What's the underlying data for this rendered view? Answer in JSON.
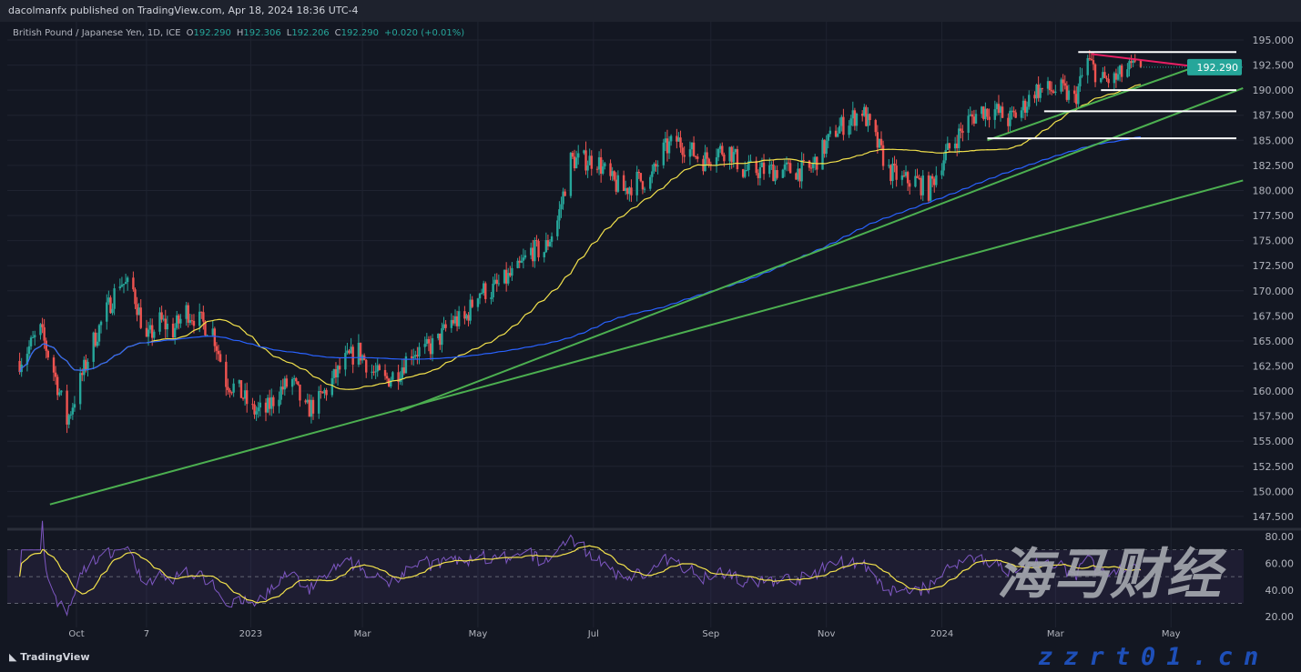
{
  "header": {
    "published": "dacolmanfx published on TradingView.com, Apr 18, 2024 18:36 UTC-4"
  },
  "legend": {
    "symbol": "British Pound / Japanese Yen, 1D, ICE",
    "o_label": "O",
    "open": "192.290",
    "h_label": "H",
    "high": "192.306",
    "l_label": "L",
    "low": "192.206",
    "c_label": "C",
    "close": "192.290",
    "change": "+0.020 (+0.01%)"
  },
  "branding": {
    "tradingview": "TradingView",
    "watermark_cn": "海马财经",
    "watermark_url": "zzrt01.cn"
  },
  "colors": {
    "background": "#131722",
    "up": "#26a69a",
    "down": "#ef5350",
    "ma_fast": "#f2e14c",
    "ma_slow": "#2962ff",
    "trendline": "#4caf50",
    "resistance": "#e91e63",
    "levels": "#ffffff",
    "rsi": "#7e57c2",
    "rsi_ma": "#f2e14c",
    "last_price": "#26a69a"
  },
  "chart_data": {
    "type": "candlestick",
    "title": "British Pound / Japanese Yen, 1D, ICE",
    "price_axis": {
      "ticks": [
        "195.000",
        "192.500",
        "190.000",
        "187.500",
        "185.000",
        "182.500",
        "180.000",
        "177.500",
        "175.000",
        "172.500",
        "170.000",
        "167.500",
        "165.000",
        "162.500",
        "160.000",
        "157.500",
        "155.000",
        "152.500",
        "150.000",
        "147.500"
      ],
      "range": [
        147.5,
        195.0
      ],
      "last_price": "192.290"
    },
    "time_axis": {
      "ticks": [
        {
          "label": "Oct",
          "date": "2022-10-01"
        },
        {
          "label": "7",
          "date": "2022-11-07"
        },
        {
          "label": "2023",
          "date": "2023-01-01"
        },
        {
          "label": "Mar",
          "date": "2023-03-01"
        },
        {
          "label": "May",
          "date": "2023-05-01"
        },
        {
          "label": "Jul",
          "date": "2023-07-01"
        },
        {
          "label": "Sep",
          "date": "2023-09-01"
        },
        {
          "label": "Nov",
          "date": "2023-11-01"
        },
        {
          "label": "2024",
          "date": "2024-01-01"
        },
        {
          "label": "Mar",
          "date": "2024-03-01"
        },
        {
          "label": "May",
          "date": "2024-05-01"
        }
      ],
      "range": [
        "2022-09-01",
        "2024-06-08"
      ]
    },
    "weekly_closes": [
      [
        "2022-09-01",
        163
      ],
      [
        "2022-09-12",
        166
      ],
      [
        "2022-09-19",
        162
      ],
      [
        "2022-09-26",
        157
      ],
      [
        "2022-10-03",
        161
      ],
      [
        "2022-10-10",
        165
      ],
      [
        "2022-10-17",
        168
      ],
      [
        "2022-10-24",
        171
      ],
      [
        "2022-10-31",
        170
      ],
      [
        "2022-11-07",
        165
      ],
      [
        "2022-11-14",
        167
      ],
      [
        "2022-11-21",
        166
      ],
      [
        "2022-11-28",
        168
      ],
      [
        "2022-12-05",
        167
      ],
      [
        "2022-12-12",
        166
      ],
      [
        "2022-12-19",
        161
      ],
      [
        "2022-12-26",
        160
      ],
      [
        "2023-01-02",
        158
      ],
      [
        "2023-01-09",
        158
      ],
      [
        "2023-01-16",
        160
      ],
      [
        "2023-01-23",
        161
      ],
      [
        "2023-01-30",
        158
      ],
      [
        "2023-02-06",
        159
      ],
      [
        "2023-02-13",
        161
      ],
      [
        "2023-02-20",
        163
      ],
      [
        "2023-02-27",
        164
      ],
      [
        "2023-03-06",
        162
      ],
      [
        "2023-03-13",
        161
      ],
      [
        "2023-03-20",
        162
      ],
      [
        "2023-03-27",
        164
      ],
      [
        "2023-04-03",
        164
      ],
      [
        "2023-04-10",
        165
      ],
      [
        "2023-04-17",
        167
      ],
      [
        "2023-04-24",
        167
      ],
      [
        "2023-05-01",
        170
      ],
      [
        "2023-05-08",
        170
      ],
      [
        "2023-05-15",
        171
      ],
      [
        "2023-05-22",
        172
      ],
      [
        "2023-05-29",
        174
      ],
      [
        "2023-06-05",
        174
      ],
      [
        "2023-06-12",
        177
      ],
      [
        "2023-06-19",
        183
      ],
      [
        "2023-06-26",
        183
      ],
      [
        "2023-07-03",
        183
      ],
      [
        "2023-07-10",
        181
      ],
      [
        "2023-07-17",
        180
      ],
      [
        "2023-07-24",
        181
      ],
      [
        "2023-07-31",
        181
      ],
      [
        "2023-08-07",
        184
      ],
      [
        "2023-08-14",
        185
      ],
      [
        "2023-08-21",
        184
      ],
      [
        "2023-08-28",
        183
      ],
      [
        "2023-09-04",
        184
      ],
      [
        "2023-09-11",
        184
      ],
      [
        "2023-09-18",
        182
      ],
      [
        "2023-09-25",
        182
      ],
      [
        "2023-10-02",
        182
      ],
      [
        "2023-10-09",
        182
      ],
      [
        "2023-10-16",
        182
      ],
      [
        "2023-10-23",
        182
      ],
      [
        "2023-10-30",
        184
      ],
      [
        "2023-11-06",
        186
      ],
      [
        "2023-11-13",
        187
      ],
      [
        "2023-11-20",
        188
      ],
      [
        "2023-11-27",
        185
      ],
      [
        "2023-12-04",
        182
      ],
      [
        "2023-12-11",
        181
      ],
      [
        "2023-12-18",
        181
      ],
      [
        "2023-12-25",
        180
      ],
      [
        "2024-01-01",
        183
      ],
      [
        "2024-01-08",
        185
      ],
      [
        "2024-01-15",
        187
      ],
      [
        "2024-01-22",
        188
      ],
      [
        "2024-01-29",
        188
      ],
      [
        "2024-02-05",
        187
      ],
      [
        "2024-02-12",
        188
      ],
      [
        "2024-02-19",
        190
      ],
      [
        "2024-02-26",
        190
      ],
      [
        "2024-03-04",
        190
      ],
      [
        "2024-03-11",
        189
      ],
      [
        "2024-03-18",
        193
      ],
      [
        "2024-03-25",
        191
      ],
      [
        "2024-04-01",
        191
      ],
      [
        "2024-04-08",
        192
      ],
      [
        "2024-04-15",
        192.29
      ]
    ],
    "drawings": {
      "trendlines": [
        {
          "from": [
            "2022-09-17",
            148.7
          ],
          "to": [
            "2024-06-08",
            181.0
          ]
        },
        {
          "from": [
            "2023-03-21",
            158.0
          ],
          "to": [
            "2024-06-08",
            190.2
          ]
        },
        {
          "from": [
            "2024-01-25",
            185.0
          ],
          "to": [
            "2024-05-15",
            192.4
          ]
        }
      ],
      "resistance": {
        "from": [
          "2024-03-20",
          193.6
        ],
        "to": [
          "2024-05-16",
          192.3
        ]
      },
      "levels": [
        {
          "from": "2024-03-13",
          "price": 193.8
        },
        {
          "from": "2024-03-25",
          "price": 190.0
        },
        {
          "from": "2024-02-24",
          "price": 187.9
        },
        {
          "from": "2024-01-25",
          "price": 185.2
        }
      ]
    },
    "indicators": {
      "moving_averages": [
        "fast",
        "slow"
      ],
      "rsi": {
        "ticks": [
          "80.00",
          "60.00",
          "40.00",
          "20.00"
        ],
        "band": [
          30,
          70
        ]
      }
    },
    "grid": true
  }
}
